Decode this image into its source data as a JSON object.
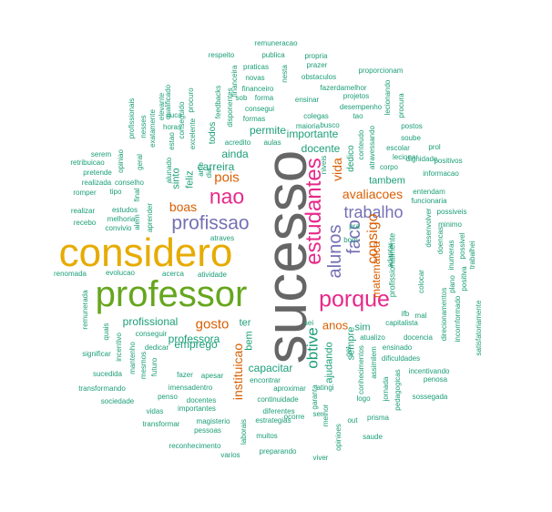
{
  "colors": {
    "grey": "#666666",
    "green": "#1b9e77",
    "olive": "#66a61e",
    "gold": "#e6ab02",
    "pink": "#e7298a",
    "purple": "#7570b3",
    "orange": "#d95f02"
  },
  "words": {
    "sucesso": "sucesso",
    "considero": "considero",
    "professor": "professor",
    "porque": "porque",
    "estudantes": "estudantes",
    "nao": "nao",
    "profissao": "profissao",
    "alunos": "alunos",
    "faco": "faco",
    "trabalho": "trabalho",
    "consigo": "consigo",
    "obtive": "obtive",
    "avaliacoes": "avaliacoes",
    "vida": "vida",
    "pois": "pois",
    "boas": "boas",
    "gosto": "gosto",
    "instituicao": "instituicao",
    "anos": "anos",
    "matematica": "matematica",
    "carreira": "carreira",
    "professora": "professora",
    "profissional": "profissional",
    "emprego": "emprego",
    "capacitar": "capacitar",
    "docente": "docente",
    "importante": "importante",
    "permite": "permite",
    "ainda": "ainda",
    "sinto": "sinto",
    "feliz": "feliz",
    "sempre": "sempre",
    "ajudando": "ajudando",
    "tambem": "tambem",
    "sim": "sim",
    "ter": "ter",
    "bem": "bem",
    "dedico": "dedico",
    "profissionalmente": "profissionalmente",
    "todos": "todos",
    "remuneracao": "remuneracao",
    "respeito": "respeito",
    "publica": "publica",
    "propria": "propria",
    "praticas": "praticas",
    "financeira": "financeira",
    "prazer": "prazer",
    "proporcionam": "proporcionam",
    "novas": "novas",
    "nesta": "nesta",
    "obstaculos": "obstaculos",
    "financeiro": "financeiro",
    "fazerdamelhor": "fazerdamelhor",
    "sob": "sob",
    "forma": "forma",
    "ensinar": "ensinar",
    "projetos": "projetos",
    "consegui": "consegui",
    "desempenho": "desempenho",
    "formas": "formas",
    "colegas": "colegas",
    "maioria": "maioria",
    "busco": "busco",
    "tao": "tao",
    "acredito": "acredito",
    "aulas": "aulas",
    "lecionando": "lecionando",
    "procura": "procura",
    "postos": "postos",
    "soube": "soube",
    "escolar": "escolar",
    "prol": "prol",
    "dignidade": "dignidade",
    "positivos": "positivos",
    "informacao": "informacao",
    "entendam": "entendam",
    "funcionaria": "funcionaria",
    "lecionar": "lecionar",
    "corpo": "corpo",
    "atravessando": "atravessando",
    "conteudo": "conteudo",
    "niveis": "niveis",
    "possiveis": "possiveis",
    "minimo": "minimo",
    "desenvolver": "desenvolver",
    "doencas": "doencas",
    "inumeras": "inumeras",
    "possivel": "possivel",
    "trabalhei": "trabalhei",
    "positiva": "positiva",
    "plano": "plano",
    "colocar": "colocar",
    "adaptar": "adaptar",
    "bom": "bom",
    "pra": "pra",
    "ifb": "ifb",
    "mal": "mal",
    "capitalista": "capitalista",
    "docencia": "docencia",
    "direcionamentos": "direcionamentos",
    "incomformado": "incomformado",
    "satisfatoriamente": "satisfatoriamente",
    "atualizo": "atualizo",
    "ensinado": "ensinado",
    "dificuldades": "dificuldades",
    "incentivando": "incentivando",
    "penosa": "penosa",
    "assimilem": "assimilem",
    "sossegada": "sossegada",
    "jornada": "jornada",
    "pedagogicas": "pedagogicas",
    "prisma": "prisma",
    "logo": "logo",
    "get": "get",
    "conhecimentos": "conhecimentos",
    "sei": "sei",
    "out": "out",
    "saude": "saude",
    "opinioes": "opinioes",
    "melhor": "melhor",
    "garanta": "garanta",
    "atingi": "atingi",
    "ser": "ser",
    "ocorre": "ocorre",
    "muitos": "muitos",
    "viver": "viver",
    "preparando": "preparando",
    "laborais": "laborais",
    "estrategias": "estrategias",
    "diferentes": "diferentes",
    "continuidade": "continuidade",
    "aproximar": "aproximar",
    "encontrar": "encontrar",
    "magisterio": "magisterio",
    "pessoas": "pessoas",
    "reconhecimento": "reconhecimento",
    "varios": "varios",
    "transformar": "transformar",
    "vidas": "vidas",
    "importantes": "importantes",
    "docentes": "docentes",
    "penso": "penso",
    "imensadentro": "imensadentro",
    "fazer": "fazer",
    "apesar": "apesar",
    "sociedade": "sociedade",
    "transformando": "transformando",
    "sucedida": "sucedida",
    "futuro": "futuro",
    "dedicar": "dedicar",
    "mantenho": "mantenho",
    "incentivo": "incentivo",
    "mesmos": "mesmos",
    "conseguir": "conseguir",
    "quais": "quais",
    "significar": "significar",
    "remunerada": "remunerada",
    "renomada": "renomada",
    "evolucao": "evolucao",
    "acerca": "acerca",
    "atividade": "atividade",
    "atraves": "atraves",
    "melhoria": "melhoria",
    "convivio": "convivio",
    "recebo": "recebo",
    "realizar": "realizar",
    "estudos": "estudos",
    "romper": "romper",
    "tipo": "tipo",
    "alem": "alem",
    "realizada": "realizada",
    "conselho": "conselho",
    "pretende": "pretende",
    "final": "final",
    "retribuicao": "retribuicao",
    "serem": "serem",
    "opiniao": "opiniao",
    "geral": "geral",
    "profissionais": "profissionais",
    "nesses": "nesses",
    "exatamente": "exatamente",
    "elevante": "elevante",
    "aprender": "aprender",
    "qualificado": "qualificado",
    "ouca": "ouca",
    "horas": "horas",
    "estao": "estao",
    "alunado": "alunado",
    "conseguido": "conseguido",
    "excelente": "excelente",
    "amo": "amo",
    "dia": "dia",
    "procuro": "procuro",
    "feedbacks": "feedbacks",
    "disponentes": "disponentes"
  }
}
